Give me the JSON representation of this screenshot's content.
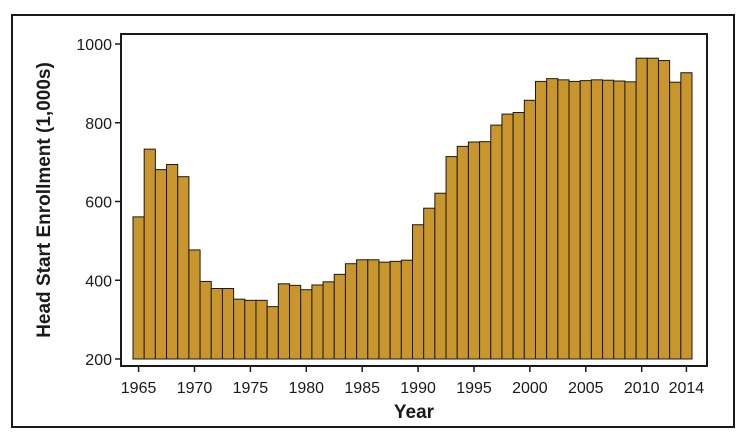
{
  "chart_data": {
    "type": "bar",
    "title": "",
    "xlabel": "Year",
    "ylabel": "Head Start Enrollment (1,000s)",
    "ylim": [
      200,
      1000
    ],
    "yticks": [
      200,
      400,
      600,
      800,
      1000
    ],
    "xtick_labels": [
      "1965",
      "1970",
      "1975",
      "1980",
      "1985",
      "1990",
      "1995",
      "2000",
      "2005",
      "2010",
      "2014"
    ],
    "bar_color": "#C9962D",
    "edge_color": "#1a1a1a",
    "categories": [
      1965,
      1966,
      1967,
      1968,
      1969,
      1970,
      1971,
      1972,
      1973,
      1974,
      1975,
      1976,
      1977,
      1978,
      1979,
      1980,
      1981,
      1982,
      1983,
      1984,
      1985,
      1986,
      1987,
      1988,
      1989,
      1990,
      1991,
      1992,
      1993,
      1994,
      1995,
      1996,
      1997,
      1998,
      1999,
      2000,
      2001,
      2002,
      2003,
      2004,
      2005,
      2006,
      2007,
      2008,
      2009,
      2010,
      2011,
      2012,
      2013,
      2014
    ],
    "values": [
      561,
      733,
      681,
      694,
      663,
      477,
      397,
      379,
      379,
      352,
      349,
      349,
      333,
      391,
      387,
      376,
      388,
      396,
      415,
      442,
      452,
      452,
      446,
      448,
      451,
      541,
      583,
      621,
      714,
      740,
      751,
      752,
      794,
      822,
      826,
      857,
      905,
      912,
      909,
      905,
      907,
      909,
      908,
      906,
      904,
      964,
      964,
      958,
      903,
      927
    ]
  }
}
